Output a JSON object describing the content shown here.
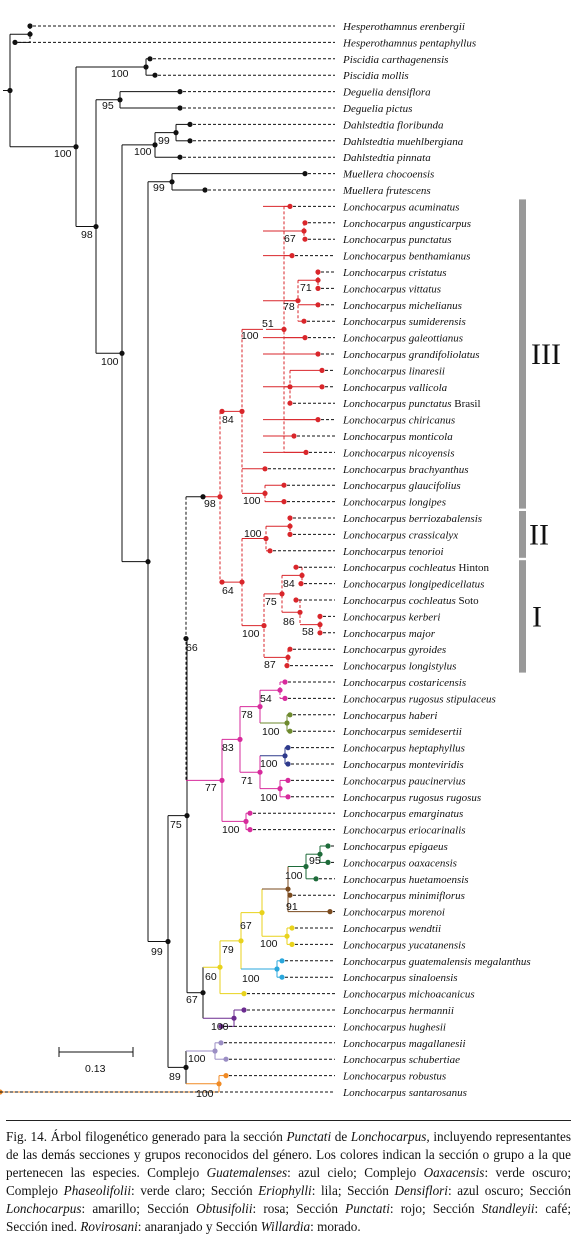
{
  "colors": {
    "black": "#111111",
    "punctati": "#d9262b",
    "densiflori": "#2e3a8c",
    "obtusifolii": "#d72b9c",
    "eriophylli": "#9b8ec4",
    "oaxacensis": "#1e6b3a",
    "phaseolifolii": "#6e8a2e",
    "guatemalenses": "#2aa7dc",
    "standleyi": "#7a4a1e",
    "lonchocarpus": "#e8d21c",
    "rovirosani": "#f08a24",
    "willardia": "#6b2c8f"
  },
  "taxa": [
    {
      "genus": "Hesperothamnus",
      "epithet": "erenbergii",
      "color": "black"
    },
    {
      "genus": "Hesperothamnus",
      "epithet": "pentaphyllus",
      "color": "black"
    },
    {
      "genus": "Piscidia",
      "epithet": "carthagenensis",
      "color": "black"
    },
    {
      "genus": "Piscidia",
      "epithet": "mollis",
      "color": "black"
    },
    {
      "genus": "Deguelia",
      "epithet": "densiflora",
      "color": "black"
    },
    {
      "genus": "Deguelia",
      "epithet": "pictus",
      "color": "black"
    },
    {
      "genus": "Dahlstedtia",
      "epithet": "floribunda",
      "color": "black"
    },
    {
      "genus": "Dahlstedtia",
      "epithet": "muehlbergiana",
      "color": "black"
    },
    {
      "genus": "Dahlstedtia",
      "epithet": "pinnata",
      "color": "black"
    },
    {
      "genus": "Muellera",
      "epithet": "chocoensis",
      "color": "black"
    },
    {
      "genus": "Muellera",
      "epithet": "frutescens",
      "color": "black"
    },
    {
      "genus": "Lonchocarpus",
      "epithet": "acuminatus",
      "color": "punctati"
    },
    {
      "genus": "Lonchocarpus",
      "epithet": "angusticarpus",
      "color": "punctati"
    },
    {
      "genus": "Lonchocarpus",
      "epithet": "punctatus",
      "color": "punctati"
    },
    {
      "genus": "Lonchocarpus",
      "epithet": "benthamianus",
      "color": "punctati"
    },
    {
      "genus": "Lonchocarpus",
      "epithet": "cristatus",
      "color": "punctati"
    },
    {
      "genus": "Lonchocarpus",
      "epithet": "vittatus",
      "color": "punctati"
    },
    {
      "genus": "Lonchocarpus",
      "epithet": "michelianus",
      "color": "punctati"
    },
    {
      "genus": "Lonchocarpus",
      "epithet": "sumiderensis",
      "color": "punctati"
    },
    {
      "genus": "Lonchocarpus",
      "epithet": "galeottianus",
      "color": "punctati"
    },
    {
      "genus": "Lonchocarpus",
      "epithet": "grandifoliolatus",
      "color": "punctati"
    },
    {
      "genus": "Lonchocarpus",
      "epithet": "linaresii",
      "color": "punctati"
    },
    {
      "genus": "Lonchocarpus",
      "epithet": "vallicola",
      "color": "punctati"
    },
    {
      "genus": "Lonchocarpus",
      "epithet": "punctatus",
      "suffix": "Brasil",
      "color": "punctati"
    },
    {
      "genus": "Lonchocarpus",
      "epithet": "chiricanus",
      "color": "punctati"
    },
    {
      "genus": "Lonchocarpus",
      "epithet": "monticola",
      "color": "punctati"
    },
    {
      "genus": "Lonchocarpus",
      "epithet": "nicoyensis",
      "color": "punctati"
    },
    {
      "genus": "Lonchocarpus",
      "epithet": "brachyanthus",
      "color": "punctati"
    },
    {
      "genus": "Lonchocarpus",
      "epithet": "glaucifolius",
      "color": "punctati"
    },
    {
      "genus": "Lonchocarpus",
      "epithet": "longipes",
      "color": "punctati"
    },
    {
      "genus": "Lonchocarpus",
      "epithet": "berriozabalensis",
      "color": "punctati"
    },
    {
      "genus": "Lonchocarpus",
      "epithet": "crassicalyx",
      "color": "punctati"
    },
    {
      "genus": "Lonchocarpus",
      "epithet": "tenorioi",
      "color": "punctati"
    },
    {
      "genus": "Lonchocarpus",
      "epithet": "cochleatus",
      "suffix": "Hinton",
      "color": "punctati"
    },
    {
      "genus": "Lonchocarpus",
      "epithet": "longipedicellatus",
      "color": "punctati"
    },
    {
      "genus": "Lonchocarpus",
      "epithet": "cochleatus",
      "suffix": "Soto",
      "color": "punctati"
    },
    {
      "genus": "Lonchocarpus",
      "epithet": "kerberi",
      "color": "punctati"
    },
    {
      "genus": "Lonchocarpus",
      "epithet": "major",
      "color": "punctati"
    },
    {
      "genus": "Lonchocarpus",
      "epithet": "gyroides",
      "color": "punctati"
    },
    {
      "genus": "Lonchocarpus",
      "epithet": "longistylus",
      "color": "punctati"
    },
    {
      "genus": "Lonchocarpus",
      "epithet": "costaricensis",
      "color": "obtusifolii"
    },
    {
      "genus": "Lonchocarpus",
      "epithet": "rugosus stipulaceus",
      "color": "obtusifolii"
    },
    {
      "genus": "Lonchocarpus",
      "epithet": "haberi",
      "color": "phaseolifolii"
    },
    {
      "genus": "Lonchocarpus",
      "epithet": "semidesertii",
      "color": "phaseolifolii"
    },
    {
      "genus": "Lonchocarpus",
      "epithet": "heptaphyllus",
      "color": "densiflori"
    },
    {
      "genus": "Lonchocarpus",
      "epithet": "monteviridis",
      "color": "densiflori"
    },
    {
      "genus": "Lonchocarpus",
      "epithet": "paucinervius",
      "color": "obtusifolii"
    },
    {
      "genus": "Lonchocarpus",
      "epithet": "rugosus rugosus",
      "color": "obtusifolii"
    },
    {
      "genus": "Lonchocarpus",
      "epithet": "emarginatus",
      "color": "obtusifolii"
    },
    {
      "genus": "Lonchocarpus",
      "epithet": "eriocarinalis",
      "color": "obtusifolii"
    },
    {
      "genus": "Lonchocarpus",
      "epithet": "epigaeus",
      "color": "oaxacensis"
    },
    {
      "genus": "Lonchocarpus",
      "epithet": "oaxacensis",
      "color": "oaxacensis"
    },
    {
      "genus": "Lonchocarpus",
      "epithet": "huetamoensis",
      "color": "oaxacensis"
    },
    {
      "genus": "Lonchocarpus",
      "epithet": "minimiflorus",
      "color": "standleyi"
    },
    {
      "genus": "Lonchocarpus",
      "epithet": "morenoi",
      "color": "standleyi"
    },
    {
      "genus": "Lonchocarpus",
      "epithet": "wendtii",
      "color": "lonchocarpus"
    },
    {
      "genus": "Lonchocarpus",
      "epithet": "yucatanensis",
      "color": "lonchocarpus"
    },
    {
      "genus": "Lonchocarpus",
      "epithet": "guatemalensis megalanthus",
      "color": "guatemalenses"
    },
    {
      "genus": "Lonchocarpus",
      "epithet": "sinaloensis",
      "color": "guatemalenses"
    },
    {
      "genus": "Lonchocarpus",
      "epithet": "michoacanicus",
      "color": "lonchocarpus"
    },
    {
      "genus": "Lonchocarpus",
      "epithet": "hermannii",
      "color": "willardia"
    },
    {
      "genus": "Lonchocarpus",
      "epithet": "hughesii",
      "color": "willardia"
    },
    {
      "genus": "Lonchocarpus",
      "epithet": "magallanesii",
      "color": "eriophylli"
    },
    {
      "genus": "Lonchocarpus",
      "epithet": "schubertiae",
      "color": "eriophylli"
    },
    {
      "genus": "Lonchocarpus",
      "epithet": "robustus",
      "color": "rovirosani"
    },
    {
      "genus": "Lonchocarpus",
      "epithet": "santarosanus",
      "color": "rovirosani"
    }
  ],
  "support_values": [
    "100",
    "95",
    "99",
    "100",
    "99",
    "100",
    "100",
    "98",
    "67",
    "71",
    "78",
    "51",
    "100",
    "84",
    "100",
    "100",
    "98",
    "75",
    "84",
    "86",
    "58",
    "100",
    "87",
    "64",
    "66",
    "54",
    "78",
    "100",
    "100",
    "71",
    "100",
    "83",
    "100",
    "77",
    "95",
    "100",
    "91",
    "67",
    "100",
    "100",
    "79",
    "60",
    "100",
    "67",
    "100",
    "89",
    "75",
    "99",
    "100"
  ],
  "groups": [
    {
      "label": "III",
      "bar_color": "#999999"
    },
    {
      "label": "II",
      "bar_color": "#999999"
    },
    {
      "label": "I",
      "bar_color": "#999999"
    }
  ],
  "scale_bar": {
    "label": "0.13"
  },
  "caption": {
    "parts": [
      {
        "t": "Fig. 14. Árbol filogenético generado para la sección ",
        "i": false
      },
      {
        "t": "Punctati",
        "i": true
      },
      {
        "t": " de ",
        "i": false
      },
      {
        "t": "Lonchocarpus,",
        "i": true
      },
      {
        "t": " incluyendo representantes de las demás secciones y grupos reconocidos del género. Los colores indican la sección o grupo a la que pertenecen las especies. Complejo ",
        "i": false
      },
      {
        "t": "Guatemalenses",
        "i": true
      },
      {
        "t": ": azul cielo; Complejo ",
        "i": false
      },
      {
        "t": "Oaxacensis",
        "i": true
      },
      {
        "t": ": verde oscuro; Complejo ",
        "i": false
      },
      {
        "t": "Phaseolifolii",
        "i": true
      },
      {
        "t": ": verde claro; Sección ",
        "i": false
      },
      {
        "t": "Eriophylli",
        "i": true
      },
      {
        "t": ": lila; Sección ",
        "i": false
      },
      {
        "t": "Densiflori",
        "i": true
      },
      {
        "t": ": azul oscuro; Sección ",
        "i": false
      },
      {
        "t": "Lonchocarpus",
        "i": true
      },
      {
        "t": ": amarillo; Sección ",
        "i": false
      },
      {
        "t": "Obtusifolii",
        "i": true
      },
      {
        "t": ": rosa; Sección ",
        "i": false
      },
      {
        "t": "Punctati",
        "i": true
      },
      {
        "t": ": rojo; Sección ",
        "i": false
      },
      {
        "t": "Standleyii",
        "i": true
      },
      {
        "t": ": café; Sección ined. ",
        "i": false
      },
      {
        "t": "Rovirosani",
        "i": true
      },
      {
        "t": ": anaranjado y Sección ",
        "i": false
      },
      {
        "t": "Willardia",
        "i": true
      },
      {
        "t": ": morado.",
        "i": false
      }
    ]
  }
}
